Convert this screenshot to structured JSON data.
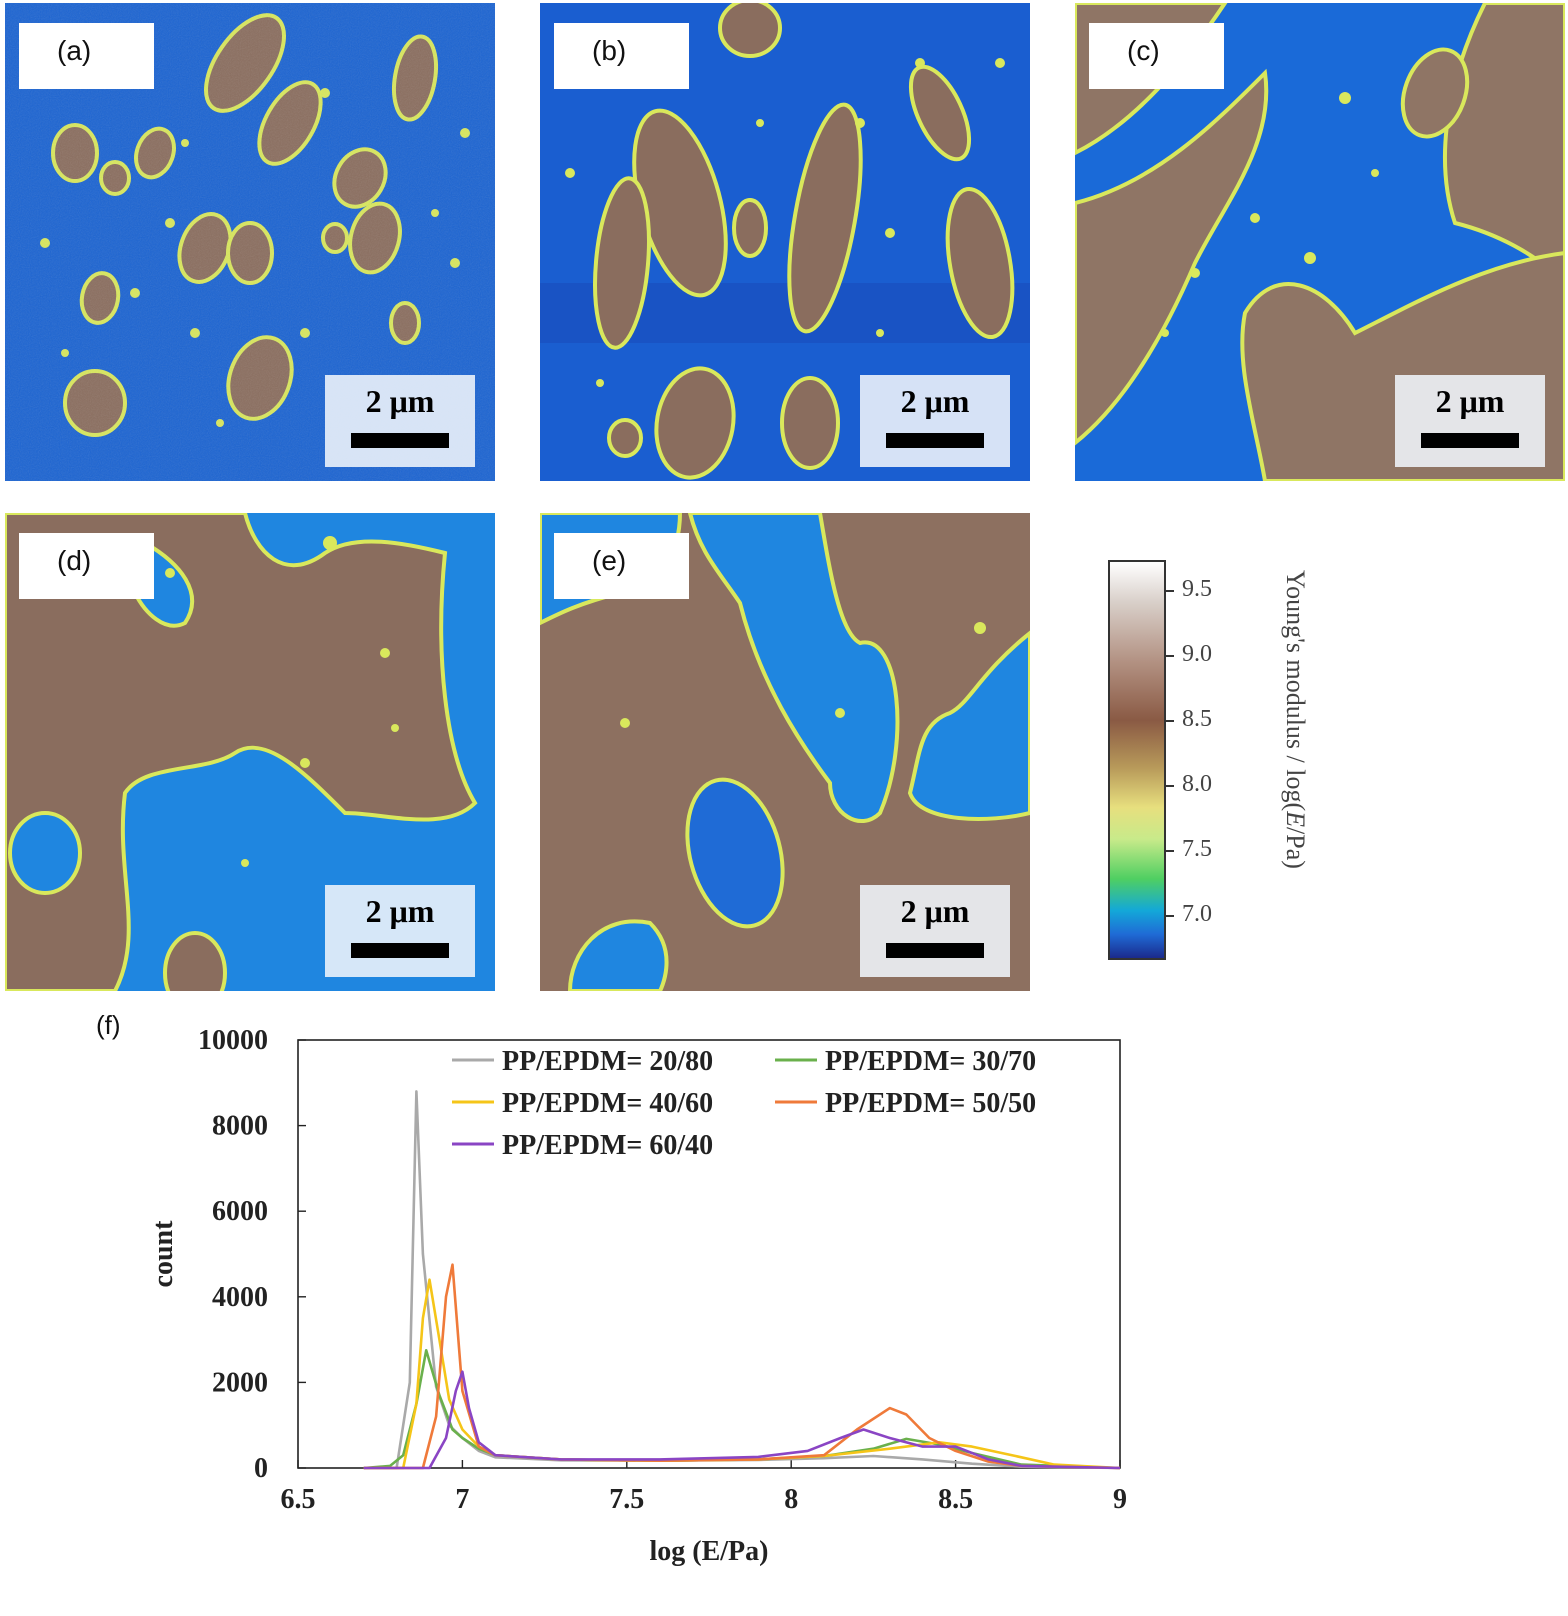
{
  "panels": [
    {
      "label": "(a)",
      "scale": "2 μm"
    },
    {
      "label": "(b)",
      "scale": "2 μm"
    },
    {
      "label": "(c)",
      "scale": "2 μm"
    },
    {
      "label": "(d)",
      "scale": "2 μm"
    },
    {
      "label": "(e)",
      "scale": "2 μm"
    }
  ],
  "colorbar": {
    "ticks": [
      "9.5",
      "9.0",
      "8.5",
      "8.0",
      "7.5",
      "7.0"
    ],
    "title_prefix": "Young's modulus / log(",
    "title_var": "E",
    "title_suffix": "/Pa)"
  },
  "panel_f_label": "(f)",
  "chart_data": {
    "type": "line",
    "xlabel": "log (E/Pa)",
    "ylabel": "count",
    "xlim": [
      6.5,
      9
    ],
    "ylim": [
      0,
      10000
    ],
    "xticks": [
      "6.5",
      "7",
      "7.5",
      "8",
      "8.5",
      "9"
    ],
    "yticks": [
      "0",
      "2000",
      "4000",
      "6000",
      "8000",
      "10000"
    ],
    "legend_position": "top-right",
    "series": [
      {
        "name": "PP/EPDM= 20/80",
        "color": "#a9a9a9",
        "x": [
          6.7,
          6.8,
          6.84,
          6.86,
          6.88,
          6.92,
          6.96,
          7.0,
          7.05,
          7.1,
          7.3,
          7.6,
          7.9,
          8.1,
          8.25,
          8.4,
          8.55,
          8.7,
          9.0
        ],
        "y": [
          0,
          0,
          2000,
          8800,
          5000,
          1900,
          1000,
          700,
          400,
          250,
          180,
          170,
          190,
          230,
          280,
          200,
          100,
          30,
          0
        ]
      },
      {
        "name": "PP/EPDM= 30/70",
        "color": "#6ab04c",
        "x": [
          6.7,
          6.78,
          6.82,
          6.86,
          6.89,
          6.93,
          6.97,
          7.0,
          7.05,
          7.1,
          7.3,
          7.6,
          7.9,
          8.1,
          8.25,
          8.35,
          8.45,
          8.55,
          8.7,
          9.0
        ],
        "y": [
          0,
          50,
          300,
          1500,
          2750,
          1700,
          900,
          700,
          450,
          300,
          200,
          170,
          200,
          280,
          450,
          680,
          550,
          350,
          80,
          0
        ]
      },
      {
        "name": "PP/EPDM= 40/60",
        "color": "#f5c518",
        "x": [
          6.7,
          6.82,
          6.86,
          6.88,
          6.9,
          6.93,
          6.96,
          7.0,
          7.05,
          7.1,
          7.3,
          7.6,
          7.9,
          8.1,
          8.3,
          8.45,
          8.55,
          8.7,
          8.8,
          9.0
        ],
        "y": [
          0,
          0,
          1500,
          3500,
          4400,
          3000,
          1600,
          900,
          500,
          300,
          200,
          170,
          200,
          280,
          450,
          600,
          500,
          250,
          80,
          0
        ]
      },
      {
        "name": "PP/EPDM= 50/50",
        "color": "#ef7a3a",
        "x": [
          6.7,
          6.88,
          6.92,
          6.95,
          6.97,
          7.0,
          7.05,
          7.1,
          7.3,
          7.6,
          7.9,
          8.1,
          8.2,
          8.3,
          8.35,
          8.42,
          8.5,
          8.6,
          8.7,
          9.0
        ],
        "y": [
          0,
          0,
          1200,
          4000,
          4750,
          1800,
          500,
          300,
          200,
          170,
          200,
          300,
          900,
          1400,
          1250,
          700,
          400,
          150,
          50,
          0
        ]
      },
      {
        "name": "PP/EPDM= 60/40",
        "color": "#8a45c4",
        "x": [
          6.7,
          6.9,
          6.95,
          6.98,
          7.0,
          7.02,
          7.05,
          7.1,
          7.3,
          7.6,
          7.9,
          8.05,
          8.15,
          8.22,
          8.3,
          8.4,
          8.5,
          8.6,
          8.7,
          9.0
        ],
        "y": [
          0,
          0,
          700,
          1800,
          2250,
          1400,
          600,
          300,
          200,
          200,
          260,
          400,
          700,
          900,
          700,
          500,
          500,
          200,
          50,
          0
        ]
      }
    ]
  }
}
